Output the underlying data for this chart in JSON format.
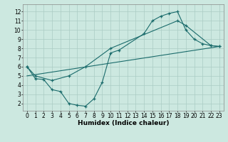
{
  "line1_x": [
    0,
    1,
    2,
    3,
    4,
    5,
    6,
    7,
    8,
    9,
    10,
    11,
    14,
    15,
    16,
    17,
    18,
    19,
    20,
    21,
    22,
    23
  ],
  "line1_y": [
    6.0,
    4.7,
    4.6,
    3.5,
    3.3,
    2.0,
    1.8,
    1.7,
    2.5,
    4.3,
    7.5,
    7.8,
    9.6,
    11.0,
    11.5,
    11.8,
    12.0,
    10.0,
    9.0,
    8.5,
    8.3,
    8.2
  ],
  "line2_x": [
    0,
    1,
    3,
    5,
    7,
    10,
    18,
    19,
    22,
    23
  ],
  "line2_y": [
    6.0,
    5.0,
    4.5,
    5.0,
    6.0,
    8.0,
    11.0,
    10.5,
    8.3,
    8.2
  ],
  "line3_x": [
    0,
    23
  ],
  "line3_y": [
    5.0,
    8.2
  ],
  "line_color": "#1a6b6b",
  "bg_color": "#cce8e0",
  "grid_color": "#aaccc4",
  "xlabel": "Humidex (Indice chaleur)",
  "xlim": [
    -0.5,
    23.5
  ],
  "ylim": [
    1.2,
    12.8
  ],
  "xticks": [
    0,
    1,
    2,
    3,
    4,
    5,
    6,
    7,
    8,
    9,
    10,
    11,
    12,
    13,
    14,
    15,
    16,
    17,
    18,
    19,
    20,
    21,
    22,
    23
  ],
  "yticks": [
    2,
    3,
    4,
    5,
    6,
    7,
    8,
    9,
    10,
    11,
    12
  ],
  "label_fontsize": 6.5,
  "tick_fontsize": 5.5
}
